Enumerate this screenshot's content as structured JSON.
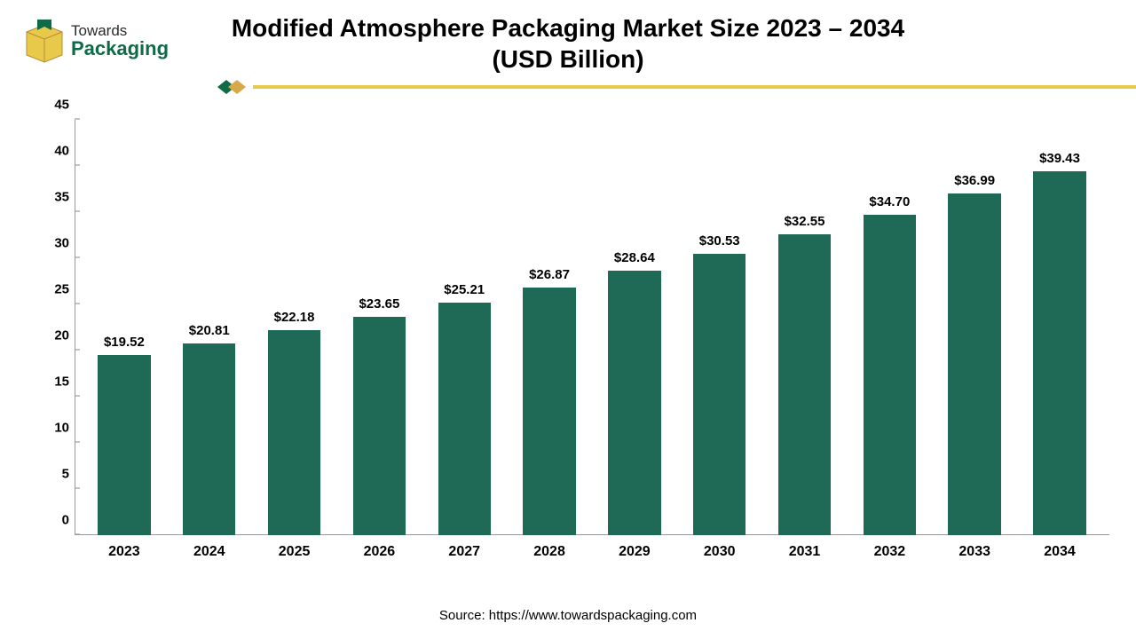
{
  "logo": {
    "line1": "Towards",
    "line2": "Packaging",
    "line1_color": "#2b2b2b",
    "line2_color": "#0f6a47",
    "box_fill": "#e8c94a",
    "box_stroke": "#b78a3a"
  },
  "title": {
    "line1": "Modified Atmosphere Packaging Market Size 2023 – 2034",
    "line2": "(USD Billion)",
    "fontsize": 28,
    "color": "#000000"
  },
  "divider": {
    "line_color": "#e8c94a",
    "chevron_dark": "#0f6a47",
    "chevron_light": "#d8a84a"
  },
  "chart": {
    "type": "bar",
    "categories": [
      "2023",
      "2024",
      "2025",
      "2026",
      "2027",
      "2028",
      "2029",
      "2030",
      "2031",
      "2032",
      "2033",
      "2034"
    ],
    "values": [
      19.52,
      20.81,
      22.18,
      23.65,
      25.21,
      26.87,
      28.64,
      30.53,
      32.55,
      34.7,
      36.99,
      39.43
    ],
    "value_labels": [
      "$19.52",
      "$20.81",
      "$22.18",
      "$23.65",
      "$25.21",
      "$26.87",
      "$28.64",
      "$30.53",
      "$32.55",
      "$34.70",
      "$36.99",
      "$39.43"
    ],
    "bar_color": "#1f6a57",
    "ymin": 0,
    "ymax": 45,
    "ytick_step": 5,
    "yticks": [
      0,
      5,
      10,
      15,
      20,
      25,
      30,
      35,
      40,
      45
    ],
    "background_color": "#ffffff",
    "axis_color": "#999999",
    "tick_fontsize": 15,
    "xlabel_fontsize": 16,
    "value_label_fontsize": 15,
    "bar_width_ratio": 0.62
  },
  "source": {
    "text": "Source: https://www.towardspackaging.com",
    "fontsize": 15,
    "color": "#000000"
  }
}
